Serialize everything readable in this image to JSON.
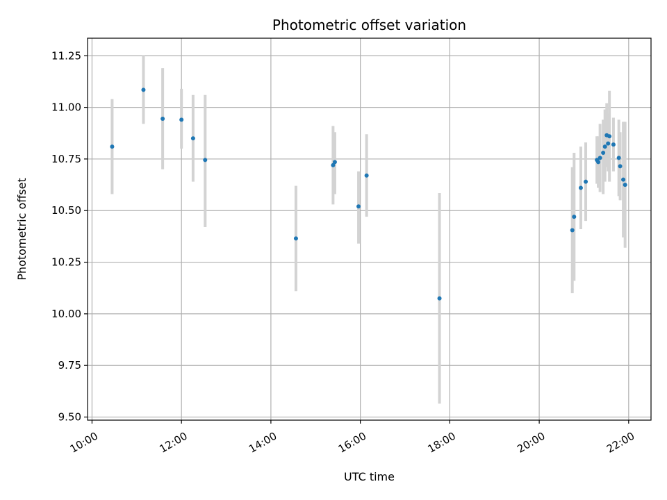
{
  "chart_data": {
    "type": "scatter",
    "title": "Photometric offset variation",
    "xlabel": "UTC time",
    "ylabel": "Photometric offset",
    "x_unit": "hours (UTC)",
    "xlim": [
      9.9,
      22.5
    ],
    "ylim": [
      9.485,
      11.335
    ],
    "grid": true,
    "x_ticks": [
      10,
      12,
      14,
      16,
      18,
      20,
      22
    ],
    "x_tick_labels": [
      "10:00",
      "12:00",
      "14:00",
      "16:00",
      "18:00",
      "20:00",
      "22:00"
    ],
    "y_ticks": [
      9.5,
      9.75,
      10.0,
      10.25,
      10.5,
      10.75,
      11.0,
      11.25
    ],
    "y_tick_labels": [
      "9.50",
      "9.75",
      "10.00",
      "10.25",
      "10.50",
      "10.75",
      "11.00",
      "11.25"
    ],
    "colors": {
      "points": "#1f77b4",
      "error_bars": "#d3d3d3",
      "grid": "#b0b0b0"
    },
    "series": [
      {
        "points": [
          {
            "x": 10.45,
            "y": 10.81,
            "ylow": 10.58,
            "yhigh": 11.04
          },
          {
            "x": 11.15,
            "y": 11.085,
            "ylow": 10.92,
            "yhigh": 11.25
          },
          {
            "x": 11.58,
            "y": 10.945,
            "ylow": 10.7,
            "yhigh": 11.19
          },
          {
            "x": 12.0,
            "y": 10.94,
            "ylow": 10.8,
            "yhigh": 11.09
          },
          {
            "x": 12.26,
            "y": 10.85,
            "ylow": 10.64,
            "yhigh": 11.06
          },
          {
            "x": 12.53,
            "y": 10.745,
            "ylow": 10.42,
            "yhigh": 11.06
          },
          {
            "x": 14.56,
            "y": 10.365,
            "ylow": 10.11,
            "yhigh": 10.62
          },
          {
            "x": 15.39,
            "y": 10.72,
            "ylow": 10.53,
            "yhigh": 10.91
          },
          {
            "x": 15.43,
            "y": 10.735,
            "ylow": 10.58,
            "yhigh": 10.88
          },
          {
            "x": 15.96,
            "y": 10.52,
            "ylow": 10.34,
            "yhigh": 10.69
          },
          {
            "x": 16.14,
            "y": 10.67,
            "ylow": 10.47,
            "yhigh": 10.87
          },
          {
            "x": 17.77,
            "y": 10.075,
            "ylow": 9.565,
            "yhigh": 10.585
          },
          {
            "x": 20.74,
            "y": 10.405,
            "ylow": 10.1,
            "yhigh": 10.71
          },
          {
            "x": 20.78,
            "y": 10.47,
            "ylow": 10.16,
            "yhigh": 10.78
          },
          {
            "x": 20.93,
            "y": 10.61,
            "ylow": 10.41,
            "yhigh": 10.81
          },
          {
            "x": 21.04,
            "y": 10.64,
            "ylow": 10.45,
            "yhigh": 10.83
          },
          {
            "x": 21.29,
            "y": 10.745,
            "ylow": 10.63,
            "yhigh": 10.86
          },
          {
            "x": 21.32,
            "y": 10.735,
            "ylow": 10.61,
            "yhigh": 10.86
          },
          {
            "x": 21.36,
            "y": 10.755,
            "ylow": 10.59,
            "yhigh": 10.92
          },
          {
            "x": 21.43,
            "y": 10.78,
            "ylow": 10.58,
            "yhigh": 10.94
          },
          {
            "x": 21.47,
            "y": 10.81,
            "ylow": 10.64,
            "yhigh": 10.99
          },
          {
            "x": 21.51,
            "y": 10.865,
            "ylow": 10.71,
            "yhigh": 11.02
          },
          {
            "x": 21.54,
            "y": 10.825,
            "ylow": 10.69,
            "yhigh": 10.97
          },
          {
            "x": 21.57,
            "y": 10.86,
            "ylow": 10.64,
            "yhigh": 11.08
          },
          {
            "x": 21.66,
            "y": 10.82,
            "ylow": 10.69,
            "yhigh": 10.95
          },
          {
            "x": 21.78,
            "y": 10.755,
            "ylow": 10.57,
            "yhigh": 10.94
          },
          {
            "x": 21.81,
            "y": 10.715,
            "ylow": 10.55,
            "yhigh": 10.88
          },
          {
            "x": 21.88,
            "y": 10.65,
            "ylow": 10.37,
            "yhigh": 10.93
          },
          {
            "x": 21.92,
            "y": 10.625,
            "ylow": 10.32,
            "yhigh": 10.93
          }
        ]
      }
    ]
  }
}
